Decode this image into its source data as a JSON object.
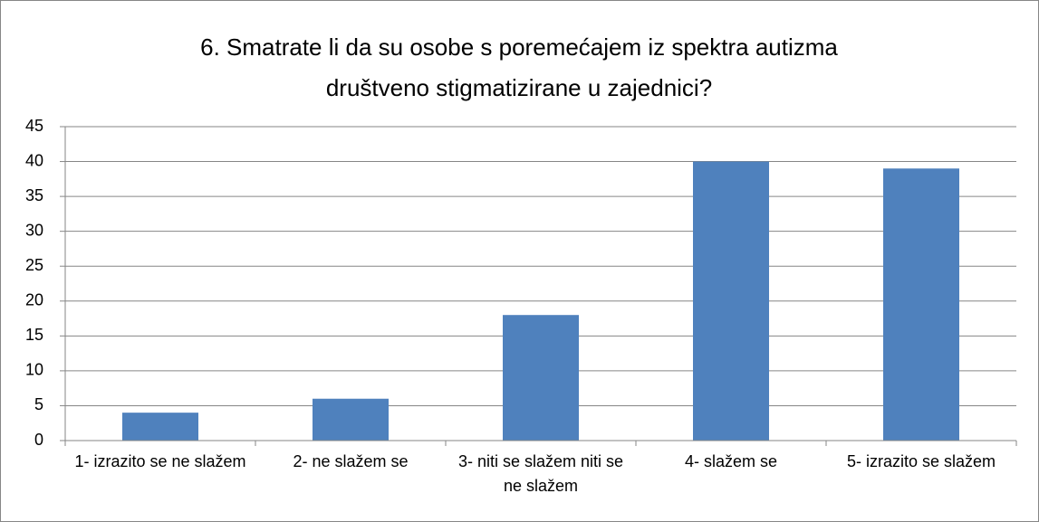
{
  "chart_data": {
    "type": "bar",
    "title": "6. Smatrate li da su osobe s poremećajem iz spektra autizma društveno stigmatizirane u zajednici?",
    "categories": [
      "1- izrazito se ne slažem",
      "2- ne slažem se",
      "3- niti se slažem niti se ne slažem",
      "4- slažem se",
      "5- izrazito se slažem"
    ],
    "values": [
      4,
      6,
      18,
      40,
      39
    ],
    "color": "#4f81bd",
    "ylim": [
      0,
      45
    ],
    "yticks": [
      0,
      5,
      10,
      15,
      20,
      25,
      30,
      35,
      40,
      45
    ],
    "grid": true
  }
}
